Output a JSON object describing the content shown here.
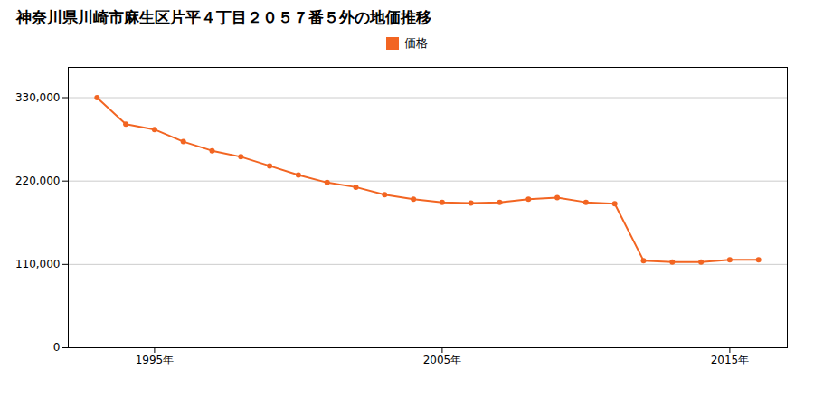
{
  "chart_data": {
    "type": "line",
    "title": "神奈川県川崎市麻生区片平４丁目２０５７番５外の地価推移",
    "x": [
      1993,
      1994,
      1995,
      1996,
      1997,
      1998,
      1999,
      2000,
      2001,
      2002,
      2003,
      2004,
      2005,
      2006,
      2007,
      2008,
      2009,
      2010,
      2011,
      2012,
      2013,
      2014,
      2015,
      2016
    ],
    "series": [
      {
        "name": "価格",
        "color": "#f26522",
        "values": [
          330000,
          295000,
          288000,
          272000,
          260000,
          252000,
          240000,
          228000,
          218000,
          212000,
          202000,
          196000,
          192000,
          191000,
          192000,
          196000,
          198000,
          192000,
          190000,
          115000,
          113000,
          113000,
          116000,
          116000
        ]
      }
    ],
    "xlim": [
      1992,
      2017
    ],
    "xticks": [
      {
        "value": 1995,
        "label": "1995年"
      },
      {
        "value": 2005,
        "label": "2005年"
      },
      {
        "value": 2015,
        "label": "2015年"
      }
    ],
    "ylim": [
      0,
      370000
    ],
    "yticks": [
      0,
      {
        "value": 110000,
        "label": "110,000"
      },
      {
        "value": 220000,
        "label": "220,000"
      },
      {
        "value": 330000,
        "label": "330,000"
      }
    ],
    "grid": true,
    "marker": "circle"
  }
}
